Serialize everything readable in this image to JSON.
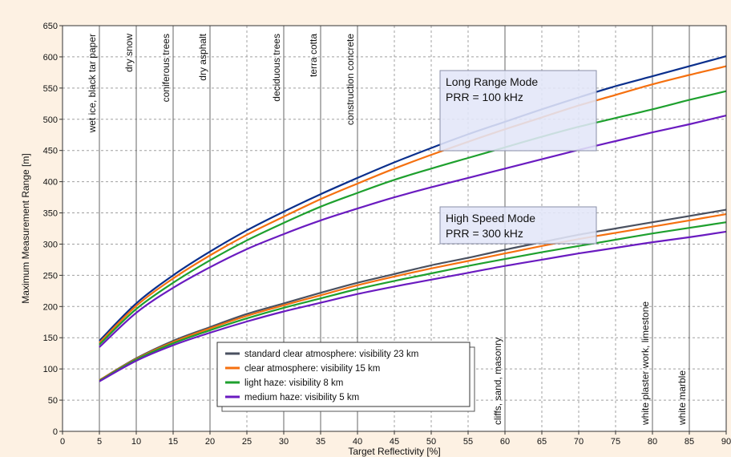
{
  "chart_data": {
    "type": "line",
    "xlabel": "Target Reflectivity [%]",
    "ylabel": "Maximum Measurement Range [m]",
    "xlim": [
      0,
      90
    ],
    "ylim": [
      0,
      650
    ],
    "xticks": [
      0,
      5,
      10,
      15,
      20,
      25,
      30,
      35,
      40,
      45,
      50,
      55,
      60,
      65,
      70,
      75,
      80,
      85,
      90
    ],
    "yticks": [
      0,
      50,
      100,
      150,
      200,
      250,
      300,
      350,
      400,
      450,
      500,
      550,
      600,
      650
    ],
    "grid": true,
    "legend_position": "bottom-center",
    "legend": [
      {
        "label": "standard clear atmosphere: visibility 23 km",
        "color": "#4a5160"
      },
      {
        "label": "clear atmosphere: visibility 15 km",
        "color": "#f5700f"
      },
      {
        "label": "light haze: visibility 8 km",
        "color": "#1ea02e"
      },
      {
        "label": "medium haze: visibility 5 km",
        "color": "#6a1bc0"
      }
    ],
    "groups": [
      {
        "label_line1": "Long Range Mode",
        "label_line2": "PRR = 100 kHz",
        "x": [
          5,
          10,
          15,
          20,
          25,
          30,
          35,
          40,
          45,
          50,
          55,
          60,
          65,
          70,
          75,
          80,
          85,
          90
        ],
        "series": [
          {
            "color": "#0a2f8c",
            "values": [
              145,
              205,
              250,
              288,
              322,
              352,
              380,
              406,
              431,
              454,
              476,
              496,
              516,
              535,
              553,
              569,
              585,
              601
            ]
          },
          {
            "color": "#f5700f",
            "values": [
              142,
              201,
              245,
              282,
              315,
              344,
              372,
              397,
              421,
              443,
              464,
              484,
              503,
              522,
              539,
              556,
              571,
              585
            ]
          },
          {
            "color": "#1ea02e",
            "values": [
              139,
              196,
              238,
              274,
              306,
              334,
              360,
              382,
              403,
              421,
              438,
              455,
              472,
              488,
              502,
              516,
              531,
              545
            ]
          },
          {
            "color": "#6a1bc0",
            "values": [
              135,
              190,
              230,
              263,
              292,
              316,
              338,
              357,
              375,
              391,
              406,
              421,
              436,
              451,
              465,
              479,
              492,
              506
            ]
          }
        ]
      },
      {
        "label_line1": "High Speed Mode",
        "label_line2": "PRR = 300 kHz",
        "x": [
          5,
          10,
          15,
          20,
          25,
          30,
          35,
          40,
          45,
          50,
          55,
          60,
          65,
          70,
          75,
          80,
          85,
          90
        ],
        "series": [
          {
            "color": "#4a5160",
            "values": [
              82,
              117,
              145,
              167,
              188,
              205,
              222,
              238,
              252,
              266,
              278,
              291,
              303,
              315,
              325,
              335,
              345,
              355
            ]
          },
          {
            "color": "#f5700f",
            "values": [
              82,
              116,
              143,
              165,
              185,
              202,
              218,
              234,
              248,
              261,
              273,
              285,
              297,
              308,
              318,
              328,
              338,
              348
            ]
          },
          {
            "color": "#1ea02e",
            "values": [
              81,
              115,
              141,
              162,
              181,
              198,
              213,
              228,
              241,
              253,
              265,
              276,
              287,
              297,
              307,
              317,
              326,
              335
            ]
          },
          {
            "color": "#6a1bc0",
            "values": [
              80,
              113,
              138,
              158,
              176,
              192,
              206,
              220,
              232,
              243,
              254,
              265,
              275,
              285,
              294,
              303,
              311,
              320
            ]
          }
        ]
      }
    ],
    "materials": [
      {
        "label": "wet ice, black tar paper",
        "x": 5,
        "valign": "top"
      },
      {
        "label": "dry snow",
        "x": 10,
        "valign": "top"
      },
      {
        "label": "coniferous trees",
        "x": 15,
        "valign": "top"
      },
      {
        "label": "dry asphalt",
        "x": 20,
        "valign": "top"
      },
      {
        "label": "deciduous trees",
        "x": 30,
        "valign": "top"
      },
      {
        "label": "terra cotta",
        "x": 35,
        "valign": "top"
      },
      {
        "label": "construction concrete",
        "x": 40,
        "valign": "top"
      },
      {
        "label": "cliffs, sand, masonry",
        "x": 60,
        "valign": "bottom"
      },
      {
        "label": "white plaster work, limestone",
        "x": 80,
        "valign": "bottom"
      },
      {
        "label": "white marble",
        "x": 85,
        "valign": "bottom"
      }
    ]
  }
}
